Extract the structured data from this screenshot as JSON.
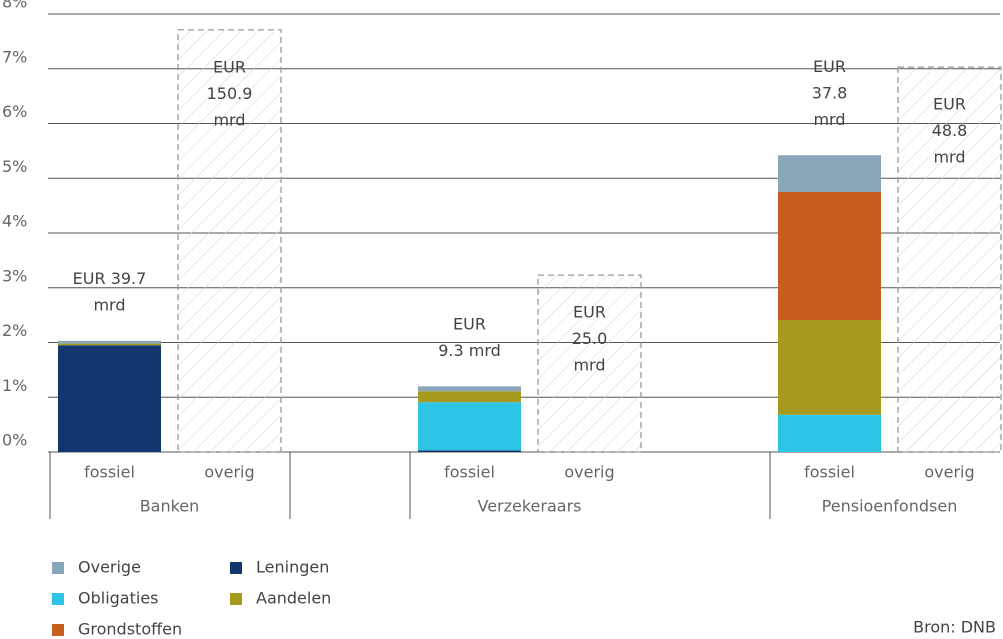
{
  "chart_data": {
    "type": "grouped_stacked_bar",
    "groups": [
      "Banken",
      "Verzekeraars",
      "Pensioenfondsen"
    ],
    "bar_labels": [
      "fossiel",
      "overig"
    ],
    "series": [
      {
        "name": "Overige",
        "color": "#8aa6b8",
        "values": [
          0.05,
          0.09,
          0.67
        ]
      },
      {
        "name": "Leningen",
        "color": "#14366e",
        "values": [
          1.95,
          0.03,
          0
        ]
      },
      {
        "name": "Obligaties",
        "color": "#2ec4e6",
        "values": [
          0,
          0.88,
          0.68
        ]
      },
      {
        "name": "Aandelen",
        "color": "#a39a1e",
        "values": [
          0.03,
          0.2,
          1.73
        ]
      },
      {
        "name": "Grondstoffen",
        "color": "#c85e1e",
        "values": [
          0,
          0,
          2.34
        ]
      }
    ],
    "overig_values": [
      7.71,
      3.23,
      7.03
    ],
    "annotations_fossiel": [
      [
        "EUR 39.7",
        "mrd"
      ],
      [
        "EUR",
        "9.3 mrd"
      ],
      [
        "EUR",
        "37.8",
        "mrd"
      ]
    ],
    "annotations_overig": [
      [
        "EUR",
        "150.9",
        "mrd"
      ],
      [
        "EUR",
        "25.0",
        "mrd"
      ],
      [
        "EUR",
        "48.8",
        "mrd"
      ]
    ],
    "ylim": [
      0,
      8
    ],
    "yticks": [
      {
        "value": 0,
        "label": "0%"
      },
      {
        "value": 1,
        "label": "1%"
      },
      {
        "value": 2,
        "label": "2%"
      },
      {
        "value": 3,
        "label": "3%"
      },
      {
        "value": 4,
        "label": "4%"
      },
      {
        "value": 5,
        "label": "5%"
      },
      {
        "value": 6,
        "label": "6%"
      },
      {
        "value": 7,
        "label": "7%"
      },
      {
        "value": 8,
        "label": "8%"
      }
    ],
    "grid": true,
    "source": "Bron: DNB"
  }
}
